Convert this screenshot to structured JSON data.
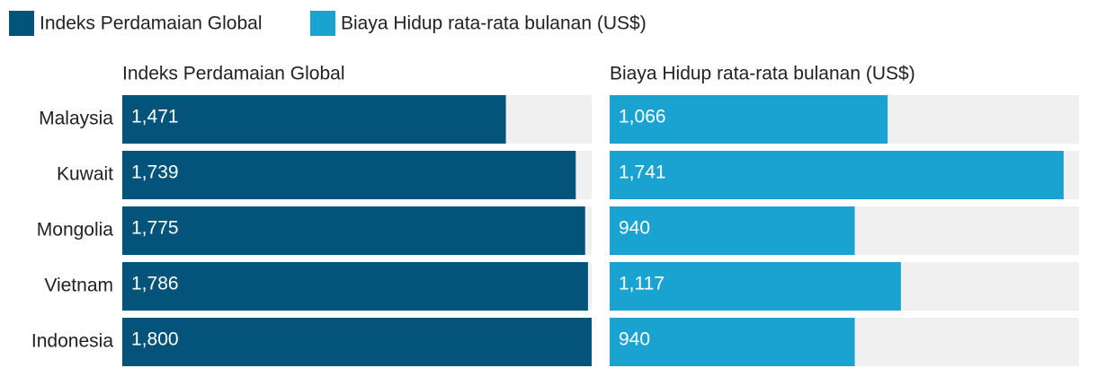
{
  "chart_data": {
    "type": "bar",
    "orientation": "horizontal",
    "legend": "top-left",
    "categories": [
      "Malaysia",
      "Kuwait",
      "Mongolia",
      "Vietnam",
      "Indonesia"
    ],
    "series": [
      {
        "name": "Indeks Perdamaian Global",
        "color": "#03537b",
        "xlim": [
          0,
          1.8
        ],
        "values": [
          1.471,
          1.739,
          1.775,
          1.786,
          1.8
        ],
        "value_labels": [
          "1,471",
          "1,739",
          "1,775",
          "1,786",
          "1,800"
        ]
      },
      {
        "name": "Biaya Hidup rata-rata bulanan (US$)",
        "color": "#1aa3d0",
        "xlim": [
          0,
          1800
        ],
        "values": [
          1066,
          1741,
          940,
          1117,
          940
        ],
        "value_labels": [
          "1,066",
          "1,741",
          "940",
          "1,117",
          "940"
        ]
      }
    ]
  }
}
